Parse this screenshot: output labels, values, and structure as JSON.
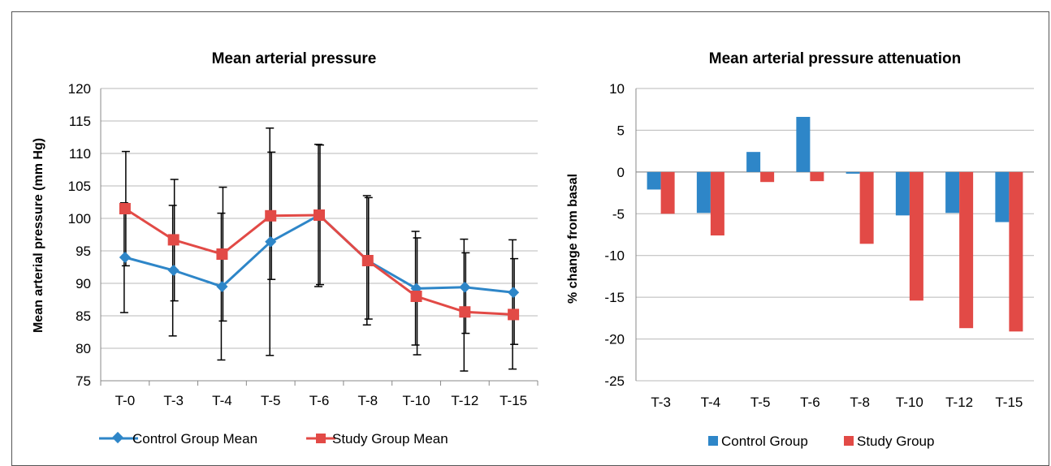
{
  "chart_data": [
    {
      "type": "line",
      "title": "Mean arterial pressure",
      "xlabel": "",
      "ylabel": "Mean arterial pressure (mm Hg)",
      "ylim": [
        75,
        120
      ],
      "yticks": [
        75,
        80,
        85,
        90,
        95,
        100,
        105,
        110,
        115,
        120
      ],
      "categories": [
        "T-0",
        "T-3",
        "T-4",
        "T-5",
        "T-6",
        "T-8",
        "T-10",
        "T-12",
        "T-15"
      ],
      "grid": "horizontal",
      "legend_position": "bottom",
      "series": [
        {
          "name": "Control Group Mean",
          "color": "#2e86c8",
          "marker": "diamond",
          "values": [
            94.0,
            92.0,
            89.5,
            96.4,
            100.5,
            93.5,
            89.2,
            89.4,
            88.6
          ],
          "err_low": [
            85.5,
            81.9,
            78.2,
            78.9,
            89.5,
            83.6,
            80.5,
            76.5,
            76.8
          ],
          "err_high": [
            102.4,
            102.0,
            100.8,
            113.9,
            111.4,
            103.5,
            98.0,
            96.8,
            96.7
          ]
        },
        {
          "name": "Study Group Mean",
          "color": "#e24a46",
          "marker": "square",
          "values": [
            101.5,
            96.7,
            94.5,
            100.4,
            100.5,
            93.5,
            88.0,
            85.6,
            85.2
          ],
          "err_low": [
            92.7,
            87.3,
            84.2,
            90.6,
            89.8,
            84.5,
            79.0,
            82.3,
            80.6
          ],
          "err_high": [
            110.3,
            106.0,
            104.8,
            110.2,
            111.3,
            103.2,
            97.0,
            94.7,
            93.8
          ]
        }
      ]
    },
    {
      "type": "bar",
      "title": "Mean arterial pressure attenuation",
      "xlabel": "",
      "ylabel": "% change from basal",
      "ylim": [
        -25,
        10
      ],
      "yticks": [
        -25,
        -20,
        -15,
        -10,
        -5,
        0,
        5,
        10
      ],
      "categories": [
        "T-3",
        "T-4",
        "T-5",
        "T-6",
        "T-8",
        "T-10",
        "T-12",
        "T-15"
      ],
      "grid": "horizontal",
      "legend_position": "bottom",
      "series": [
        {
          "name": "Control Group",
          "color": "#2e86c8",
          "values": [
            -2.1,
            -4.9,
            2.4,
            6.6,
            -0.2,
            -5.2,
            -4.9,
            -6.0
          ]
        },
        {
          "name": "Study Group",
          "color": "#e24a46",
          "values": [
            -5.0,
            -7.6,
            -1.2,
            -1.1,
            -8.6,
            -15.4,
            -18.7,
            -19.1
          ]
        }
      ]
    }
  ]
}
